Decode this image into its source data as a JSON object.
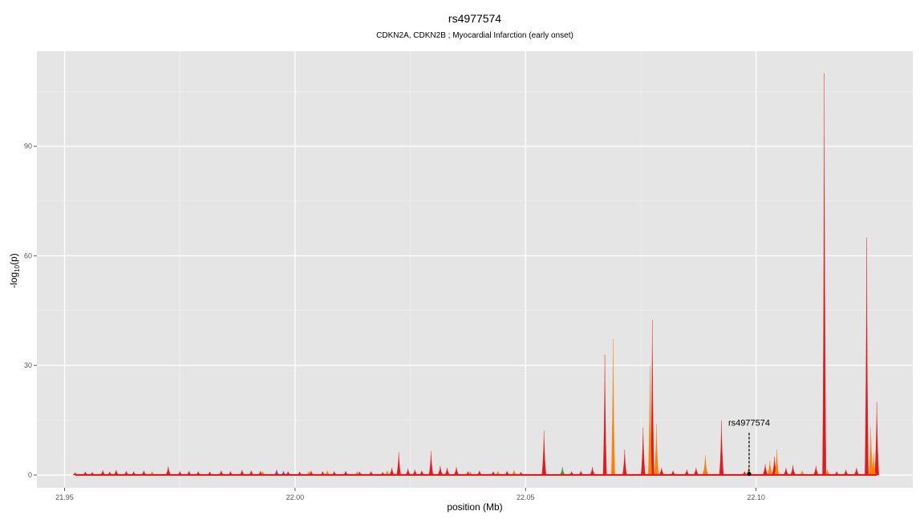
{
  "chart_data": {
    "type": "area",
    "title": "rs4977574",
    "subtitle": "CDKN2A, CDKN2B ; Myocardial Infarction (early onset)",
    "xlabel": "position (Mb)",
    "ylabel_main": "-log",
    "ylabel_sub": "10",
    "ylabel_tail": "(p)",
    "xlim": [
      21.944,
      22.134
    ],
    "ylim": [
      -3.5,
      116
    ],
    "xticks": [
      21.95,
      22.0,
      22.05,
      22.1
    ],
    "xtick_labels": [
      "21.95",
      "22.00",
      "22.05",
      "22.10"
    ],
    "yticks": [
      0,
      30,
      60,
      90
    ],
    "ytick_labels": [
      "0",
      "30",
      "60",
      "90"
    ],
    "grid": true,
    "annotation": {
      "label": "rs4977574",
      "x": 22.0985,
      "y": 0.3,
      "label_y": 13.5
    },
    "colors": {
      "red": "#e31a1c",
      "orange": "#ff7f00",
      "green": "#33a02c",
      "blue": "#6a51a3"
    },
    "series": [
      {
        "color": "red",
        "points": [
          [
            21.9523,
            0.7
          ],
          [
            21.9545,
            0.9
          ],
          [
            21.956,
            0.8
          ],
          [
            21.9583,
            1.3
          ],
          [
            21.9598,
            0.9
          ],
          [
            21.9612,
            1.4
          ],
          [
            21.9634,
            1.1
          ],
          [
            21.965,
            1.0
          ],
          [
            21.9672,
            1.2
          ],
          [
            21.969,
            0.7
          ],
          [
            21.9725,
            2.4
          ],
          [
            21.975,
            1.0
          ],
          [
            21.977,
            1.1
          ],
          [
            21.979,
            1.0
          ],
          [
            21.9815,
            0.9
          ],
          [
            21.984,
            1.2
          ],
          [
            21.986,
            1.0
          ],
          [
            21.9885,
            1.4
          ],
          [
            21.9905,
            1.2
          ],
          [
            21.9925,
            1.1
          ],
          [
            21.996,
            1.4
          ],
          [
            21.9985,
            1.0
          ],
          [
            22.001,
            0.9
          ],
          [
            22.0035,
            1.1
          ],
          [
            22.006,
            1.0
          ],
          [
            22.0085,
            1.0
          ],
          [
            22.011,
            1.1
          ],
          [
            22.014,
            0.9
          ],
          [
            22.0165,
            1.0
          ],
          [
            22.019,
            0.8
          ],
          [
            22.021,
            2.0
          ],
          [
            22.0225,
            6.3
          ],
          [
            22.0245,
            1.8
          ],
          [
            22.026,
            1.5
          ],
          [
            22.0275,
            1.2
          ],
          [
            22.0295,
            6.5
          ],
          [
            22.0315,
            2.5
          ],
          [
            22.033,
            2.0
          ],
          [
            22.035,
            2.2
          ],
          [
            22.0375,
            1.0
          ],
          [
            22.04,
            1.2
          ],
          [
            22.043,
            1.0
          ],
          [
            22.046,
            1.1
          ],
          [
            22.049,
            0.8
          ],
          [
            22.054,
            12.2
          ],
          [
            22.06,
            1.0
          ],
          [
            22.062,
            1.1
          ],
          [
            22.0645,
            2.2
          ],
          [
            22.0672,
            33.0
          ],
          [
            22.0715,
            7.0
          ],
          [
            22.0755,
            13.0
          ],
          [
            22.0775,
            42.5
          ],
          [
            22.0795,
            2.0
          ],
          [
            22.082,
            1.2
          ],
          [
            22.085,
            1.5
          ],
          [
            22.087,
            2.0
          ],
          [
            22.089,
            4.5
          ],
          [
            22.0925,
            15.0
          ],
          [
            22.0975,
            1.0
          ],
          [
            22.102,
            3.0
          ],
          [
            22.104,
            5.0
          ],
          [
            22.1065,
            2.0
          ],
          [
            22.108,
            2.7
          ],
          [
            22.113,
            2.5
          ],
          [
            22.1148,
            110.0
          ],
          [
            22.1175,
            1.0
          ],
          [
            22.1195,
            1.5
          ],
          [
            22.1218,
            2.0
          ],
          [
            22.124,
            65.0
          ],
          [
            22.1262,
            20.0
          ]
        ]
      },
      {
        "color": "orange",
        "points": [
          [
            21.969,
            1.0
          ],
          [
            21.993,
            1.0
          ],
          [
            22.003,
            1.0
          ],
          [
            22.007,
            1.2
          ],
          [
            22.0135,
            1.0
          ],
          [
            22.02,
            1.2
          ],
          [
            22.038,
            1.0
          ],
          [
            22.044,
            1.1
          ],
          [
            22.0475,
            1.3
          ],
          [
            22.069,
            37.2
          ],
          [
            22.0784,
            14.0
          ],
          [
            22.077,
            30.0
          ],
          [
            22.089,
            5.5
          ],
          [
            22.0984,
            2.2
          ],
          [
            22.103,
            4.0
          ],
          [
            22.1045,
            7.0
          ],
          [
            22.11,
            1.2
          ],
          [
            22.1155,
            1.5
          ],
          [
            22.1249,
            13.0
          ],
          [
            22.1255,
            6.0
          ]
        ]
      },
      {
        "color": "green",
        "points": [
          [
            22.058,
            2.2
          ]
        ]
      },
      {
        "color": "blue",
        "points": [
          [
            21.996,
            1.3
          ],
          [
            21.9975,
            1.1
          ]
        ]
      }
    ]
  }
}
